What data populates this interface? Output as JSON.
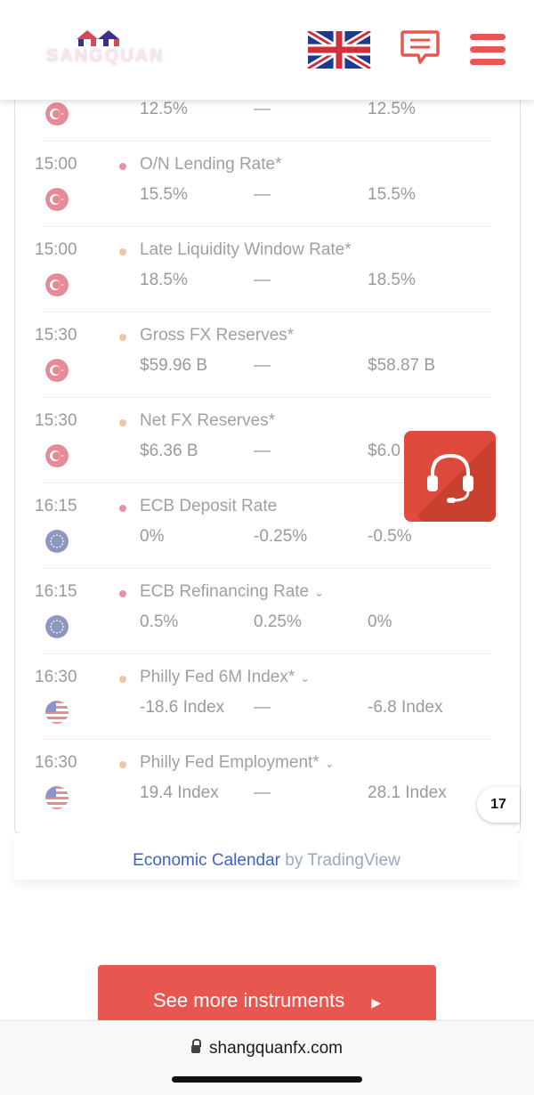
{
  "header": {
    "logo_text": "SANGQUAN",
    "language": "English",
    "chat_label": "chat",
    "menu_label": "menu"
  },
  "colors": {
    "brand_red": "#e8574f",
    "link_blue": "#3d63c6",
    "dot_pink": "#e891a6",
    "dot_orange": "#f0c6a3"
  },
  "partial_row": {
    "actual": "12.5%",
    "forecast": "—",
    "prior": "12.5%",
    "country_icon": "turkey-flag-icon"
  },
  "events": [
    {
      "time": "15:00",
      "name": "O/N Lending Rate*",
      "actual": "15.5%",
      "forecast": "—",
      "prior": "15.5%",
      "country_icon": "turkey-flag-icon",
      "importance": "pink"
    },
    {
      "time": "15:00",
      "name": "Late Liquidity Window Rate*",
      "actual": "18.5%",
      "forecast": "—",
      "prior": "18.5%",
      "country_icon": "turkey-flag-icon",
      "importance": "orange"
    },
    {
      "time": "15:30",
      "name": "Gross FX Reserves*",
      "actual": "$59.96 B",
      "forecast": "—",
      "prior": "$58.87 B",
      "country_icon": "turkey-flag-icon",
      "importance": "orange"
    },
    {
      "time": "15:30",
      "name": "Net FX Reserves*",
      "actual": "$6.36 B",
      "forecast": "—",
      "prior": "$6.0",
      "country_icon": "turkey-flag-icon",
      "importance": "orange"
    },
    {
      "time": "16:15",
      "name": "ECB Deposit Rate",
      "actual": "0%",
      "forecast": "-0.25%",
      "prior": "-0.5%",
      "country_icon": "eu-flag-icon",
      "importance": "pink"
    },
    {
      "time": "16:15",
      "name": "ECB Refinancing Rate",
      "actual": "0.5%",
      "forecast": "0.25%",
      "prior": "0%",
      "country_icon": "eu-flag-icon",
      "importance": "pink",
      "expandable": true
    },
    {
      "time": "16:30",
      "name": "Philly Fed 6M Index*",
      "actual": "-18.6 Index",
      "forecast": "—",
      "prior": "-6.8 Index",
      "country_icon": "us-flag-icon",
      "importance": "orange",
      "expandable": true
    },
    {
      "time": "16:30",
      "name": "Philly Fed Employment*",
      "actual": "19.4 Index",
      "forecast": "—",
      "prior": "28.1 Index",
      "country_icon": "us-flag-icon",
      "importance": "orange",
      "expandable": true
    }
  ],
  "footer": {
    "link_text": "Economic Calendar",
    "by_text": " by TradingView"
  },
  "tv_badge": "17",
  "cta": {
    "label": "See more instruments",
    "arrow": "▶"
  },
  "browser": {
    "url": "shangquanfx.com"
  }
}
